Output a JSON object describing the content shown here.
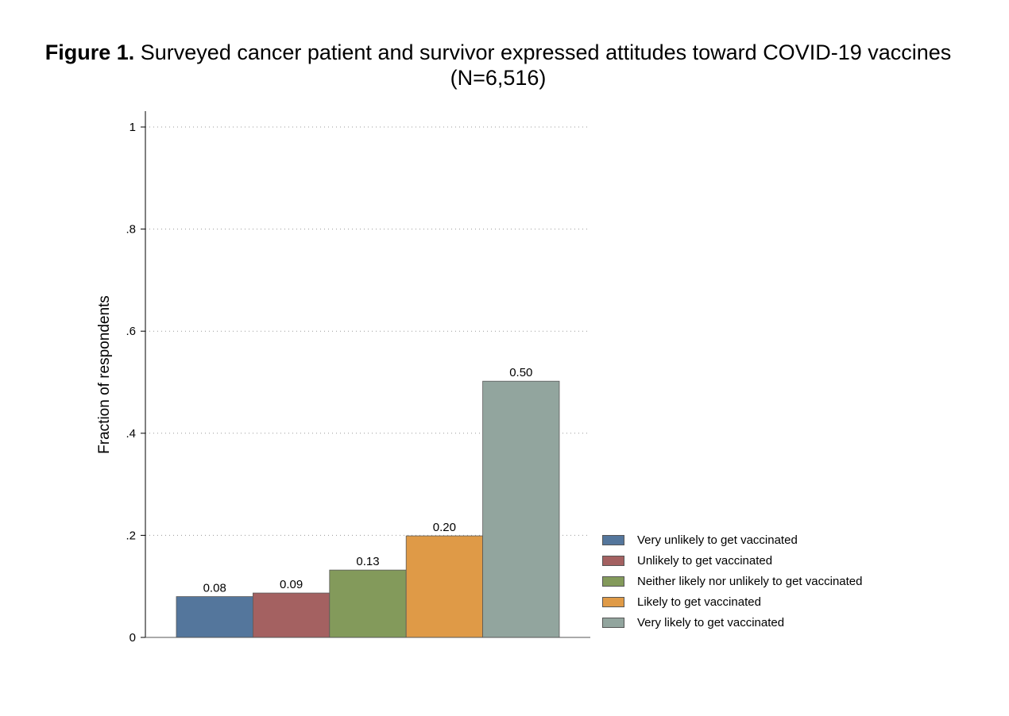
{
  "figure": {
    "label": "Figure 1.",
    "title_line1": "Surveyed cancer patient and survivor expressed attitudes toward COVID-19 vaccines",
    "title_line2": "(N=6,516)"
  },
  "chart_data": {
    "type": "bar",
    "ylabel": "Fraction of respondents",
    "xlabel": "",
    "ylim": [
      0,
      1
    ],
    "yticks": [
      0,
      0.2,
      0.4,
      0.6,
      0.8,
      1
    ],
    "ytick_labels": [
      "0",
      ".2",
      ".4",
      ".6",
      ".8",
      "1"
    ],
    "grid": true,
    "legend_position": "bottom-right",
    "series": [
      {
        "name": "Very unlikely to get vaccinated",
        "value": 0.08,
        "label": "0.08",
        "color": "#54769c"
      },
      {
        "name": "Unlikely to get vaccinated",
        "value": 0.087,
        "label": "0.09",
        "color": "#a46161"
      },
      {
        "name": "Neither likely nor unlikely to get vaccinated",
        "value": 0.132,
        "label": "0.13",
        "color": "#839a5b"
      },
      {
        "name": "Likely to get vaccinated",
        "value": 0.199,
        "label": "0.20",
        "color": "#df9a47"
      },
      {
        "name": "Very likely to get vaccinated",
        "value": 0.502,
        "label": "0.50",
        "color": "#92a59e"
      }
    ]
  }
}
